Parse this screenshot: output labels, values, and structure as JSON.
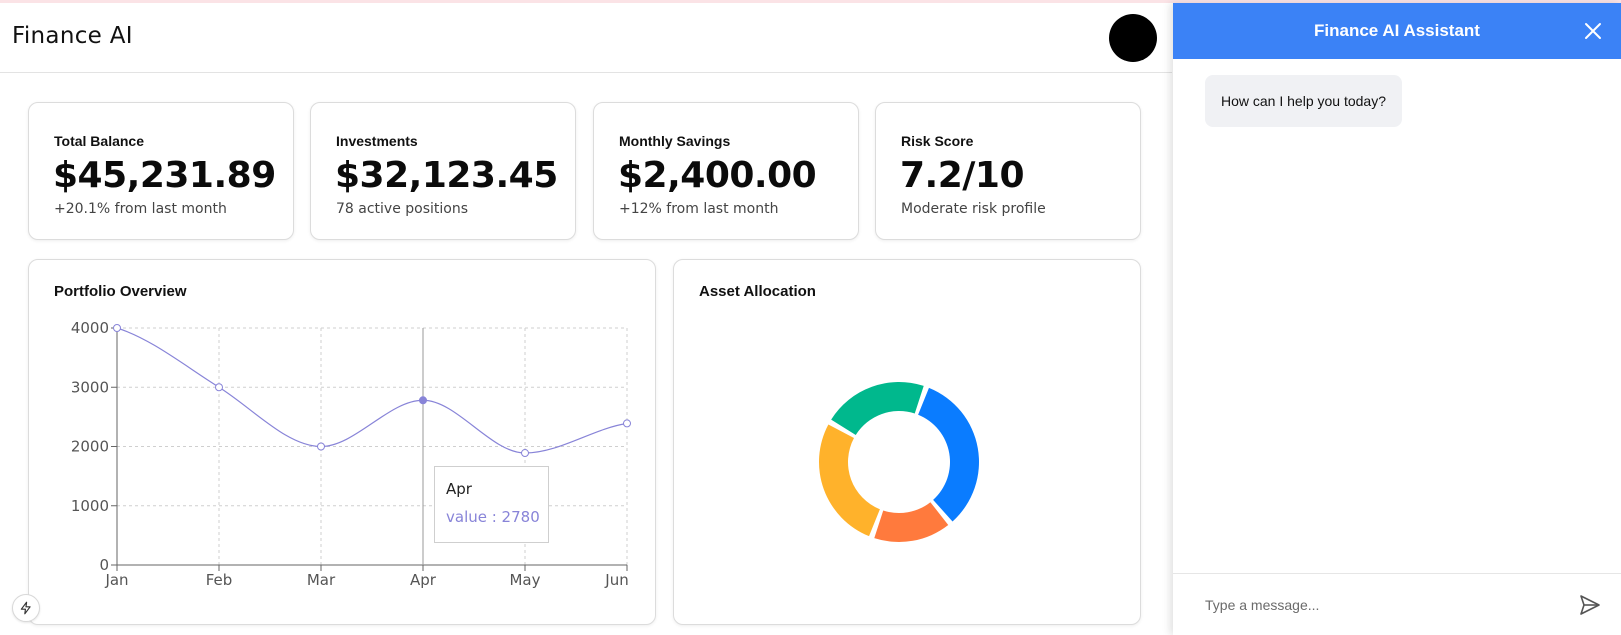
{
  "app": {
    "title": "Finance AI"
  },
  "stats": [
    {
      "label": "Total Balance",
      "value": "$45,231.89",
      "sub": "+20.1% from last month"
    },
    {
      "label": "Investments",
      "value": "$32,123.45",
      "sub": "78 active positions"
    },
    {
      "label": "Monthly Savings",
      "value": "$2,400.00",
      "sub": "+12% from last month"
    },
    {
      "label": "Risk Score",
      "value": "7.2/10",
      "sub": "Moderate risk profile"
    }
  ],
  "portfolio": {
    "title": "Portfolio Overview",
    "tooltip": {
      "label": "Apr",
      "value_text": "value : 2780"
    }
  },
  "allocation": {
    "title": "Asset Allocation"
  },
  "chart_data": [
    {
      "type": "line",
      "title": "Portfolio Overview",
      "categories": [
        "Jan",
        "Feb",
        "Mar",
        "Apr",
        "May",
        "Jun"
      ],
      "series": [
        {
          "values": [
            4000,
            3000,
            2000,
            2780,
            1890,
            2390
          ]
        }
      ],
      "yticks": [
        0,
        1000,
        2000,
        3000,
        4000
      ],
      "ylim": [
        0,
        4000
      ],
      "grid": true,
      "line_color": "#8884d8",
      "active_index": 3
    },
    {
      "type": "pie",
      "title": "Asset Allocation",
      "donut": true,
      "values": [
        30,
        15,
        25,
        20
      ],
      "colors": [
        "#0a7cff",
        "#ff7a3d",
        "#ffb22b",
        "#00b88d"
      ]
    }
  ],
  "assistant": {
    "title": "Finance AI Assistant",
    "messages": [
      {
        "text": "How can I help you today?"
      }
    ],
    "input": {
      "placeholder": "Type a message...",
      "value": ""
    }
  },
  "colors": {
    "accent": "#3b82f6",
    "line": "#8884d8"
  },
  "icons": {
    "close": "close-icon",
    "send": "send-icon",
    "bolt": "bolt-icon"
  }
}
